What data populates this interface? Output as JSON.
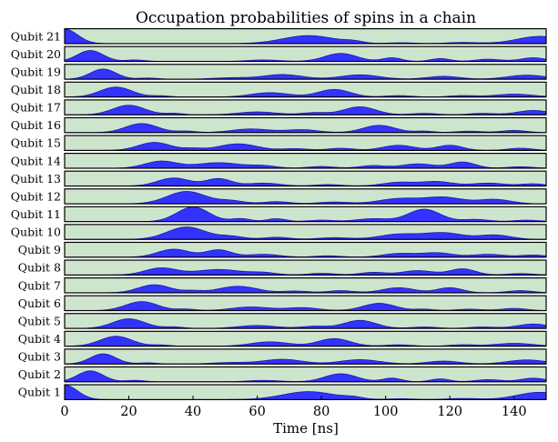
{
  "chart_data": {
    "type": "area",
    "title": "Occupation probabilities of spins in a chain",
    "xlabel": "Time [ns]",
    "ylabel": "",
    "xlim": [
      0,
      150
    ],
    "ylim": [
      0,
      1
    ],
    "xticks": [
      "0",
      "20",
      "40",
      "60",
      "80",
      "100",
      "120",
      "140"
    ],
    "xtick_values": [
      0,
      20,
      40,
      60,
      80,
      100,
      120,
      140
    ],
    "grid": false,
    "colors": {
      "panel_background": "#cde5cd",
      "fill": "#3333ff",
      "line": "#1a1aa8",
      "border": "#000000"
    },
    "series": [
      {
        "name": "Qubit 21",
        "peaks": [
          [
            0,
            1.0,
            4
          ],
          [
            76,
            0.55,
            8
          ],
          [
            90,
            0.12,
            3
          ],
          [
            105,
            0.06,
            4
          ],
          [
            124,
            0.08,
            5
          ],
          [
            148,
            0.5,
            7
          ]
        ]
      },
      {
        "name": "Qubit 20",
        "peaks": [
          [
            8,
            0.75,
            4
          ],
          [
            22,
            0.1,
            3
          ],
          [
            62,
            0.1,
            5
          ],
          [
            86,
            0.55,
            5
          ],
          [
            102,
            0.25,
            3
          ],
          [
            117,
            0.2,
            3
          ],
          [
            132,
            0.15,
            4
          ],
          [
            146,
            0.25,
            4
          ]
        ]
      },
      {
        "name": "Qubit 19",
        "peaks": [
          [
            12,
            0.7,
            4
          ],
          [
            26,
            0.08,
            3
          ],
          [
            52,
            0.1,
            6
          ],
          [
            68,
            0.32,
            6
          ],
          [
            92,
            0.3,
            6
          ],
          [
            118,
            0.2,
            5
          ],
          [
            144,
            0.28,
            6
          ]
        ]
      },
      {
        "name": "Qubit 18",
        "peaks": [
          [
            16,
            0.68,
            5
          ],
          [
            30,
            0.08,
            3
          ],
          [
            64,
            0.3,
            6
          ],
          [
            84,
            0.52,
            5
          ],
          [
            104,
            0.1,
            4
          ],
          [
            124,
            0.1,
            4
          ],
          [
            140,
            0.2,
            6
          ]
        ]
      },
      {
        "name": "Qubit 17",
        "peaks": [
          [
            20,
            0.66,
            5
          ],
          [
            34,
            0.1,
            3
          ],
          [
            60,
            0.2,
            6
          ],
          [
            78,
            0.15,
            4
          ],
          [
            92,
            0.55,
            5
          ],
          [
            112,
            0.1,
            4
          ],
          [
            130,
            0.1,
            4
          ],
          [
            146,
            0.3,
            5
          ]
        ]
      },
      {
        "name": "Qubit 16",
        "peaks": [
          [
            24,
            0.62,
            5
          ],
          [
            38,
            0.1,
            3
          ],
          [
            58,
            0.25,
            6
          ],
          [
            74,
            0.2,
            5
          ],
          [
            98,
            0.5,
            5
          ],
          [
            112,
            0.1,
            3
          ],
          [
            126,
            0.1,
            4
          ],
          [
            140,
            0.15,
            4
          ]
        ]
      },
      {
        "name": "Qubit 15",
        "peaks": [
          [
            28,
            0.55,
            5
          ],
          [
            40,
            0.12,
            3
          ],
          [
            54,
            0.45,
            6
          ],
          [
            72,
            0.12,
            4
          ],
          [
            86,
            0.15,
            4
          ],
          [
            104,
            0.35,
            5
          ],
          [
            120,
            0.35,
            4
          ],
          [
            142,
            0.15,
            4
          ]
        ]
      },
      {
        "name": "Qubit 14",
        "peaks": [
          [
            30,
            0.48,
            5
          ],
          [
            48,
            0.38,
            7
          ],
          [
            62,
            0.15,
            4
          ],
          [
            80,
            0.12,
            4
          ],
          [
            96,
            0.18,
            4
          ],
          [
            110,
            0.3,
            5
          ],
          [
            124,
            0.42,
            4
          ],
          [
            142,
            0.1,
            4
          ]
        ]
      },
      {
        "name": "Qubit 13",
        "peaks": [
          [
            34,
            0.55,
            5
          ],
          [
            48,
            0.5,
            4
          ],
          [
            62,
            0.2,
            5
          ],
          [
            82,
            0.1,
            4
          ],
          [
            104,
            0.25,
            5
          ],
          [
            116,
            0.3,
            5
          ],
          [
            132,
            0.2,
            5
          ],
          [
            146,
            0.15,
            4
          ]
        ]
      },
      {
        "name": "Qubit 12",
        "peaks": [
          [
            38,
            0.85,
            6
          ],
          [
            52,
            0.2,
            4
          ],
          [
            66,
            0.15,
            4
          ],
          [
            84,
            0.12,
            5
          ],
          [
            104,
            0.35,
            6
          ],
          [
            118,
            0.45,
            6
          ],
          [
            134,
            0.3,
            5
          ]
        ]
      },
      {
        "name": "Qubit 11",
        "peaks": [
          [
            40,
            1.0,
            5
          ],
          [
            55,
            0.2,
            3
          ],
          [
            66,
            0.2,
            3
          ],
          [
            80,
            0.1,
            4
          ],
          [
            96,
            0.2,
            5
          ],
          [
            112,
            0.85,
            5
          ],
          [
            128,
            0.15,
            4
          ],
          [
            144,
            0.1,
            4
          ]
        ]
      },
      {
        "name": "Qubit 10",
        "peaks": [
          [
            38,
            0.85,
            6
          ],
          [
            52,
            0.2,
            4
          ],
          [
            66,
            0.15,
            4
          ],
          [
            84,
            0.12,
            5
          ],
          [
            104,
            0.35,
            6
          ],
          [
            118,
            0.45,
            6
          ],
          [
            134,
            0.3,
            5
          ]
        ]
      },
      {
        "name": "Qubit 9",
        "peaks": [
          [
            34,
            0.55,
            5
          ],
          [
            48,
            0.5,
            4
          ],
          [
            62,
            0.2,
            5
          ],
          [
            82,
            0.1,
            4
          ],
          [
            104,
            0.25,
            5
          ],
          [
            116,
            0.3,
            5
          ],
          [
            132,
            0.2,
            5
          ],
          [
            146,
            0.15,
            4
          ]
        ]
      },
      {
        "name": "Qubit 8",
        "peaks": [
          [
            30,
            0.48,
            5
          ],
          [
            48,
            0.38,
            7
          ],
          [
            62,
            0.15,
            4
          ],
          [
            80,
            0.12,
            4
          ],
          [
            96,
            0.18,
            4
          ],
          [
            110,
            0.3,
            5
          ],
          [
            124,
            0.42,
            4
          ],
          [
            142,
            0.1,
            4
          ]
        ]
      },
      {
        "name": "Qubit 7",
        "peaks": [
          [
            28,
            0.55,
            5
          ],
          [
            40,
            0.12,
            3
          ],
          [
            54,
            0.45,
            6
          ],
          [
            72,
            0.12,
            4
          ],
          [
            86,
            0.15,
            4
          ],
          [
            104,
            0.35,
            5
          ],
          [
            120,
            0.35,
            4
          ],
          [
            142,
            0.15,
            4
          ]
        ]
      },
      {
        "name": "Qubit 6",
        "peaks": [
          [
            24,
            0.62,
            5
          ],
          [
            38,
            0.1,
            3
          ],
          [
            58,
            0.25,
            6
          ],
          [
            74,
            0.2,
            5
          ],
          [
            98,
            0.5,
            5
          ],
          [
            112,
            0.1,
            3
          ],
          [
            126,
            0.1,
            4
          ],
          [
            140,
            0.15,
            4
          ]
        ]
      },
      {
        "name": "Qubit 5",
        "peaks": [
          [
            20,
            0.66,
            5
          ],
          [
            34,
            0.1,
            3
          ],
          [
            60,
            0.2,
            6
          ],
          [
            78,
            0.15,
            4
          ],
          [
            92,
            0.55,
            5
          ],
          [
            112,
            0.1,
            4
          ],
          [
            130,
            0.1,
            4
          ],
          [
            146,
            0.3,
            5
          ]
        ]
      },
      {
        "name": "Qubit 4",
        "peaks": [
          [
            16,
            0.68,
            5
          ],
          [
            30,
            0.08,
            3
          ],
          [
            64,
            0.3,
            6
          ],
          [
            84,
            0.52,
            5
          ],
          [
            104,
            0.1,
            4
          ],
          [
            124,
            0.1,
            4
          ],
          [
            140,
            0.2,
            6
          ]
        ]
      },
      {
        "name": "Qubit 3",
        "peaks": [
          [
            12,
            0.7,
            4
          ],
          [
            26,
            0.08,
            3
          ],
          [
            52,
            0.1,
            6
          ],
          [
            68,
            0.32,
            6
          ],
          [
            92,
            0.3,
            6
          ],
          [
            118,
            0.2,
            5
          ],
          [
            144,
            0.28,
            6
          ]
        ]
      },
      {
        "name": "Qubit 2",
        "peaks": [
          [
            8,
            0.75,
            4
          ],
          [
            22,
            0.1,
            3
          ],
          [
            62,
            0.1,
            5
          ],
          [
            86,
            0.55,
            5
          ],
          [
            102,
            0.25,
            3
          ],
          [
            117,
            0.2,
            3
          ],
          [
            132,
            0.15,
            4
          ],
          [
            146,
            0.25,
            4
          ]
        ]
      },
      {
        "name": "Qubit 1",
        "peaks": [
          [
            0,
            1.0,
            4
          ],
          [
            76,
            0.55,
            8
          ],
          [
            90,
            0.12,
            3
          ],
          [
            105,
            0.06,
            4
          ],
          [
            124,
            0.08,
            5
          ],
          [
            148,
            0.5,
            7
          ]
        ]
      }
    ]
  }
}
